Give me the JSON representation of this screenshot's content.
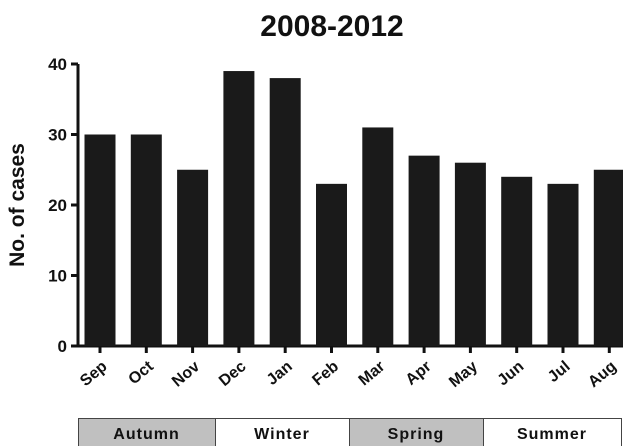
{
  "chart_data": {
    "type": "bar",
    "title": "2008-2012",
    "xlabel": "",
    "ylabel": "No. of cases",
    "ylim": [
      0,
      40
    ],
    "yticks": [
      0,
      10,
      20,
      30,
      40
    ],
    "grid": false,
    "legend": "none",
    "bar_color": "#1a1a1a",
    "categories": [
      "Sep",
      "Oct",
      "Nov",
      "Dec",
      "Jan",
      "Feb",
      "Mar",
      "Apr",
      "May",
      "Jun",
      "Jul",
      "Aug"
    ],
    "values": [
      30,
      30,
      25,
      39,
      38,
      23,
      31,
      27,
      26,
      24,
      23,
      25
    ],
    "seasons": [
      {
        "label": "Autumn",
        "months": [
          "Sep",
          "Oct",
          "Nov"
        ],
        "fill": "#c0c0c0"
      },
      {
        "label": "Winter",
        "months": [
          "Dec",
          "Jan",
          "Feb"
        ],
        "fill": "#ffffff"
      },
      {
        "label": "Spring",
        "months": [
          "Mar",
          "Apr",
          "May"
        ],
        "fill": "#c0c0c0"
      },
      {
        "label": "Summer",
        "months": [
          "Jun",
          "Jul",
          "Aug"
        ],
        "fill": "#ffffff"
      }
    ]
  }
}
